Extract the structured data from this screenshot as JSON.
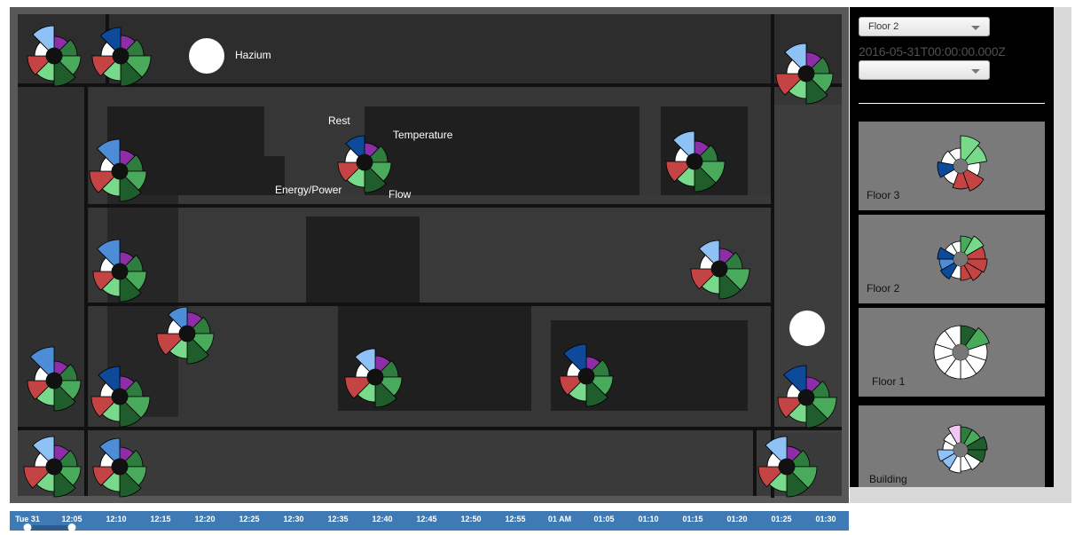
{
  "map": {
    "labels": {
      "hazium": "Hazium",
      "rest": "Rest",
      "temperature": "Temperature",
      "energy_power": "Energy/Power",
      "flow": "Flow"
    }
  },
  "controls": {
    "floor_select": "Floor 2",
    "timestamp": "2016-05-31T00:00:00.000Z",
    "secondary_select": ""
  },
  "summaries": [
    {
      "label": "Floor 3"
    },
    {
      "label": "Floor 2"
    },
    {
      "label": "Floor 1"
    },
    {
      "label": "Building"
    }
  ],
  "timeline": {
    "ticks": [
      "Tue 31",
      "12:05",
      "12:10",
      "12:15",
      "12:20",
      "12:25",
      "12:30",
      "12:35",
      "12:40",
      "12:45",
      "12:50",
      "12:55",
      "01 AM",
      "01:05",
      "01:10",
      "01:15",
      "01:20",
      "01:25",
      "01:30"
    ],
    "selection_start": "Tue 31",
    "selection_end": "12:05"
  },
  "colors": {
    "rest": "#8e2ea6",
    "temperature_dark": "#1f5e2c",
    "temperature_mid": "#2e7d3e",
    "temperature_light": "#4aaa5c",
    "temperature_pale": "#79d98a",
    "flow": "#c44444",
    "energy_light": "#8ec1f5",
    "energy_mid": "#4d8cd6",
    "energy_dark": "#0d4a9a",
    "empty": "#ffffff"
  },
  "zone_glyph_pattern": "rest, temperature x4, flow, white, energy"
}
